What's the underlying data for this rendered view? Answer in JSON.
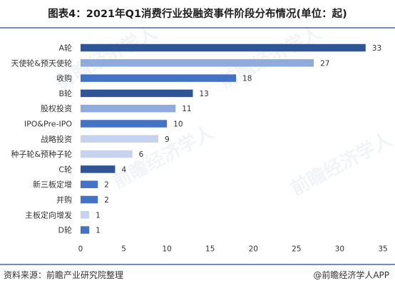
{
  "header": {
    "title": "图表4：2021年Q1消费行业投融资事件阶段分布情况(单位：起)"
  },
  "footer": {
    "source": "资料来源：前瞻产业研究院整理",
    "credit": "@前瞻经济学人APP"
  },
  "watermark": {
    "text": "前瞻经济学人"
  },
  "colors": {
    "bar_dark": "#2f5597",
    "bar_mid": "#4472c4",
    "bar_light": "#8faadc",
    "bar_pale": "#c5d3ee",
    "rule": "#6f8fb8"
  },
  "chart_data": {
    "type": "bar",
    "orientation": "horizontal",
    "title": "图表4：2021年Q1消费行业投融资事件阶段分布情况(单位：起)",
    "xlabel": "",
    "ylabel": "",
    "xlim": [
      0,
      35
    ],
    "x_ticks": [
      0,
      5,
      10,
      15,
      20,
      25,
      30,
      35
    ],
    "grid": false,
    "legend": "none",
    "categories": [
      "A轮",
      "天使轮&预天使轮",
      "收购",
      "B轮",
      "股权投资",
      "IPO&Pre-IPO",
      "战略投资",
      "种子轮&预种子轮",
      "C轮",
      "新三板定增",
      "并购",
      "主板定向增发",
      "D轮"
    ],
    "values": [
      33,
      27,
      18,
      13,
      11,
      10,
      9,
      6,
      4,
      2,
      2,
      1,
      1
    ],
    "bar_colors": [
      "#2f5597",
      "#8faadc",
      "#4472c4",
      "#2f5597",
      "#8faadc",
      "#4472c4",
      "#c5d3ee",
      "#c5d3ee",
      "#2f5597",
      "#4472c4",
      "#4472c4",
      "#c5d3ee",
      "#4472c4"
    ]
  }
}
